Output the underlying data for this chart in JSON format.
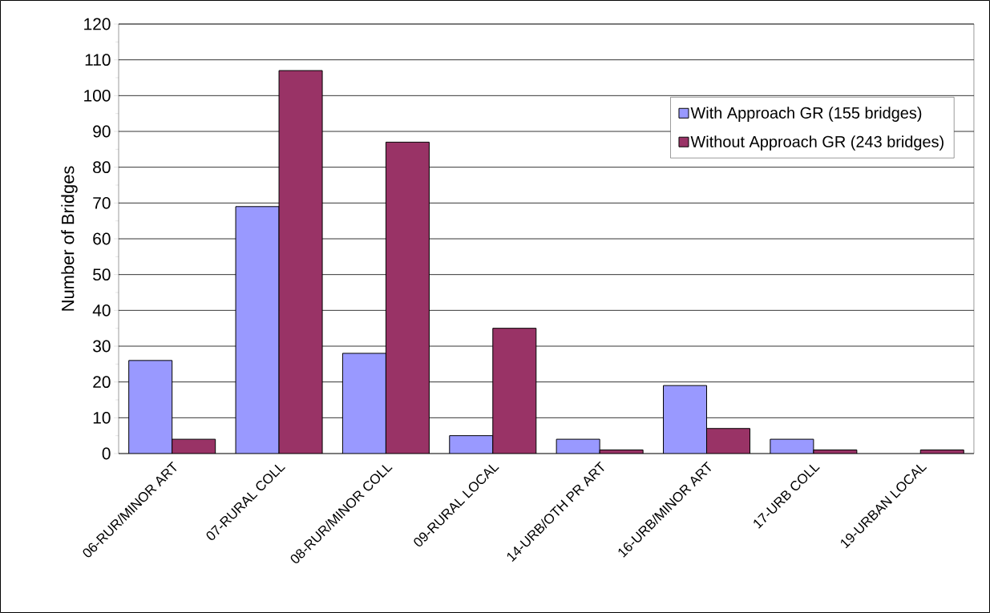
{
  "chart_data": {
    "type": "bar",
    "ylabel": "Number of Bridges",
    "categories": [
      "06-RUR/MINOR ART",
      "07-RURAL COLL",
      "08-RUR/MINOR COLL",
      "09-RURAL LOCAL",
      "14-URB/OTH PR ART",
      "16-URB/MINOR ART",
      "17-URB COLL",
      "19-URBAN LOCAL"
    ],
    "series": [
      {
        "name": "With Approach GR (155 bridges)",
        "color": "#9999ff",
        "values": [
          26,
          69,
          28,
          5,
          4,
          19,
          4,
          0
        ]
      },
      {
        "name": "Without Approach GR (243 bridges)",
        "color": "#993366",
        "values": [
          4,
          107,
          87,
          35,
          1,
          7,
          1,
          1
        ]
      }
    ],
    "ylim": [
      0,
      120
    ],
    "yticks": [
      0,
      10,
      20,
      30,
      40,
      50,
      60,
      70,
      80,
      90,
      100,
      110,
      120
    ],
    "grid": "y",
    "legend": "top right"
  }
}
